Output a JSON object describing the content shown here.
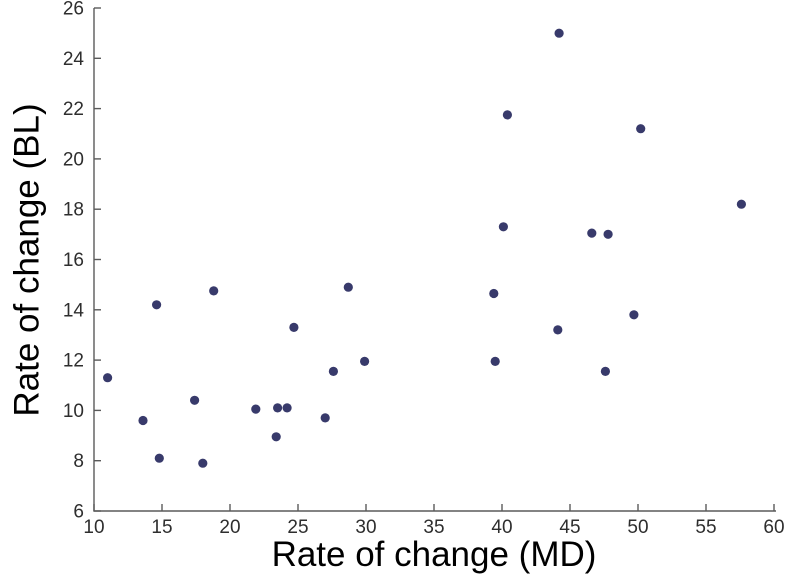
{
  "chart_data": {
    "type": "scatter",
    "title": "",
    "xlabel": "Rate of change (MD)",
    "ylabel": "Rate of change (BL)",
    "xlim": [
      10,
      60
    ],
    "ylim": [
      6,
      26
    ],
    "xticks": [
      10,
      15,
      20,
      25,
      30,
      35,
      40,
      45,
      50,
      55,
      60
    ],
    "yticks": [
      6,
      8,
      10,
      12,
      14,
      16,
      18,
      20,
      22,
      24,
      26
    ],
    "grid": false,
    "legend": null,
    "marker_color": "#383a6b",
    "marker_radius": 4.6,
    "axis_color": "#5a5a5a",
    "tick_label_color": "#2e2e2e",
    "points": [
      {
        "x": 11.0,
        "y": 11.3
      },
      {
        "x": 13.6,
        "y": 9.6
      },
      {
        "x": 14.6,
        "y": 14.2
      },
      {
        "x": 14.8,
        "y": 8.1
      },
      {
        "x": 17.4,
        "y": 10.4
      },
      {
        "x": 18.0,
        "y": 7.9
      },
      {
        "x": 18.8,
        "y": 14.75
      },
      {
        "x": 21.9,
        "y": 10.05
      },
      {
        "x": 23.4,
        "y": 8.95
      },
      {
        "x": 23.5,
        "y": 10.1
      },
      {
        "x": 24.2,
        "y": 10.1
      },
      {
        "x": 24.7,
        "y": 13.3
      },
      {
        "x": 27.0,
        "y": 9.7
      },
      {
        "x": 27.6,
        "y": 11.55
      },
      {
        "x": 28.7,
        "y": 14.9
      },
      {
        "x": 29.9,
        "y": 11.95
      },
      {
        "x": 39.4,
        "y": 14.65
      },
      {
        "x": 39.5,
        "y": 11.95
      },
      {
        "x": 40.1,
        "y": 17.3
      },
      {
        "x": 40.4,
        "y": 21.75
      },
      {
        "x": 44.1,
        "y": 13.2
      },
      {
        "x": 44.2,
        "y": 25.0
      },
      {
        "x": 46.6,
        "y": 17.05
      },
      {
        "x": 47.6,
        "y": 11.55
      },
      {
        "x": 47.8,
        "y": 17.0
      },
      {
        "x": 49.7,
        "y": 13.8
      },
      {
        "x": 50.2,
        "y": 21.2
      },
      {
        "x": 57.6,
        "y": 18.2
      }
    ]
  }
}
